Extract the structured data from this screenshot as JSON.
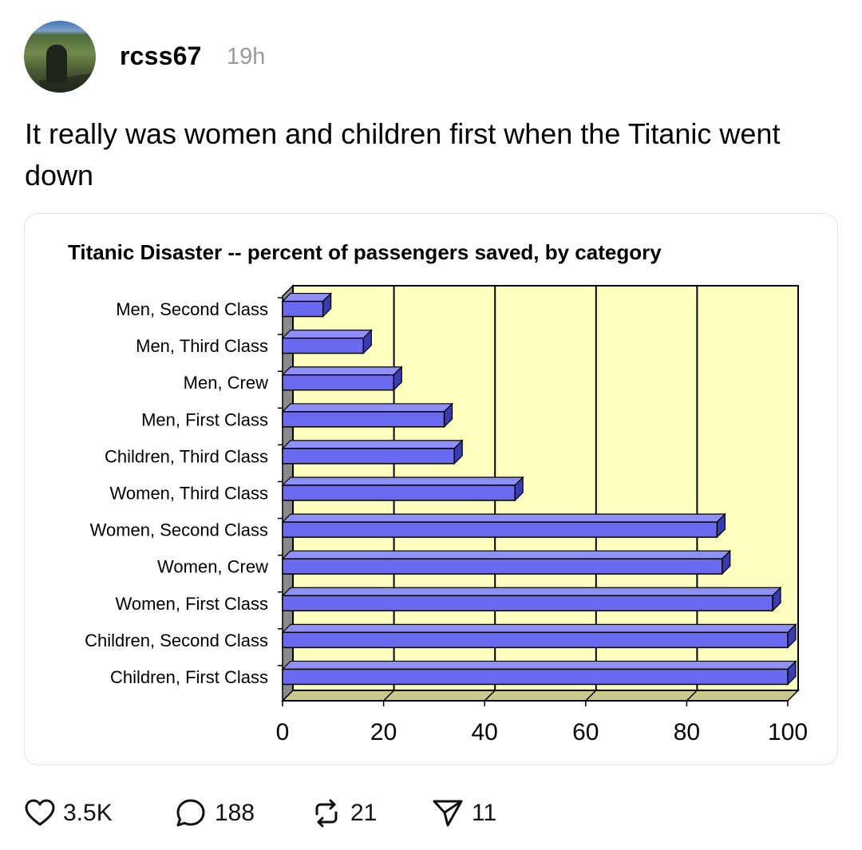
{
  "post": {
    "username": "rcss67",
    "time": "19h",
    "text": "It really was women and children first when the Titanic went down"
  },
  "actions": {
    "likes": "3.5K",
    "comments": "188",
    "reposts": "21",
    "shares": "11"
  },
  "icons": [
    "avatar",
    "heart-icon",
    "comment-icon",
    "repost-icon",
    "send-icon"
  ],
  "colors": {
    "plot_bg": "#ffffc0",
    "bar": "#6a6af0",
    "bar_top": "#8f8ff8",
    "bar_side": "#3b3bb0"
  },
  "chart_data": {
    "type": "bar",
    "orientation": "horizontal",
    "title": "Titanic Disaster -- percent of passengers saved, by category",
    "categories": [
      "Men, Second Class",
      "Men, Third Class",
      "Men, Crew",
      "Men, First Class",
      "Children, Third Class",
      "Women, Third Class",
      "Women, Second Class",
      "Women, Crew",
      "Women, First Class",
      "Children, Second Class",
      "Children, First Class"
    ],
    "values": [
      8,
      16,
      22,
      32,
      34,
      46,
      86,
      87,
      97,
      100,
      100
    ],
    "xlim": [
      0,
      100
    ],
    "xticks": [
      0,
      20,
      40,
      60,
      80,
      100
    ],
    "grid": true
  }
}
